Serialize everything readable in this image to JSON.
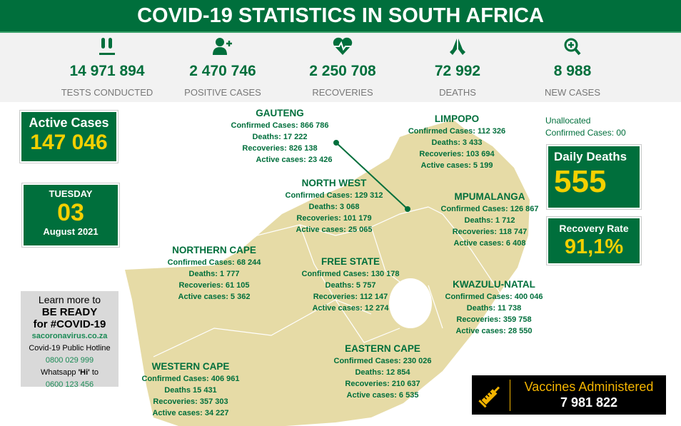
{
  "header": {
    "title": "COVID-19 STATISTICS IN SOUTH AFRICA"
  },
  "stats": [
    {
      "icon": "test-tubes-icon",
      "value": "14 971 894",
      "label": "TESTS CONDUCTED"
    },
    {
      "icon": "add-user-icon",
      "value": "2 470 746",
      "label": "POSITIVE CASES"
    },
    {
      "icon": "heartbeat-icon",
      "value": "2 250 708",
      "label": "RECOVERIES"
    },
    {
      "icon": "praying-hands-icon",
      "value": "72 992",
      "label": "DEATHS"
    },
    {
      "icon": "zoom-plus-icon",
      "value": "8 988",
      "label": "NEW CASES"
    }
  ],
  "active": {
    "label": "Active Cases",
    "value": "147 046"
  },
  "date": {
    "day": "TUESDAY",
    "num": "03",
    "month": "August 2021"
  },
  "unallocated": {
    "line1": "Unallocated",
    "line2": "Confirmed Cases: 00"
  },
  "daily_deaths": {
    "label": "Daily Deaths",
    "value": "555"
  },
  "recovery_rate": {
    "label": "Recovery Rate",
    "value": "91,1%"
  },
  "provinces": [
    {
      "name": "GAUTENG",
      "confirmed": "Confirmed Cases: 866 786",
      "deaths": "Deaths: 17 222",
      "recoveries": "Recoveries: 826 138",
      "active": "Active cases: 23 426"
    },
    {
      "name": "LIMPOPO",
      "confirmed": "Confirmed Cases: 112 326",
      "deaths": "Deaths: 3 433",
      "recoveries": "Recoveries: 103 694",
      "active": "Active cases: 5 199"
    },
    {
      "name": "NORTH WEST",
      "confirmed": "Confirmed Cases: 129  312",
      "deaths": "Deaths: 3 068",
      "recoveries": "Recoveries: 101 179",
      "active": "Active cases: 25 065"
    },
    {
      "name": "MPUMALANGA",
      "confirmed": "Confirmed Cases: 126 867",
      "deaths": "Deaths:  1 712",
      "recoveries": "Recoveries: 118 747",
      "active": "Active cases: 6 408"
    },
    {
      "name": "NORTHERN CAPE",
      "confirmed": "Confirmed Cases: 68 244",
      "deaths": "Deaths: 1 777",
      "recoveries": "Recoveries: 61 105",
      "active": "Active cases: 5 362"
    },
    {
      "name": "FREE STATE",
      "confirmed": "Confirmed Cases: 130 178",
      "deaths": "Deaths: 5 757",
      "recoveries": "Recoveries:  112 147",
      "active": "Active cases: 12 274"
    },
    {
      "name": "KWAZULU-NATAL",
      "confirmed": "Confirmed Cases: 400 046",
      "deaths": "Deaths: 11 738",
      "recoveries": "Recoveries: 359 758",
      "active": "Active cases: 28 550"
    },
    {
      "name": "WESTERN CAPE",
      "confirmed": "Confirmed Cases: 406 961",
      "deaths": "Deaths 15 431",
      "recoveries": "Recoveries: 357 303",
      "active": "Active cases: 34 227"
    },
    {
      "name": "EASTERN CAPE",
      "confirmed": "Confirmed Cases: 230 026",
      "deaths": "Deaths: 12  854",
      "recoveries": "Recoveries: 210 637",
      "active": "Active cases: 6 535"
    }
  ],
  "info": {
    "l1": "Learn more to",
    "l2": "BE READY",
    "l3": "for #COVID-19",
    "site": "sacoronavirus.co.za",
    "l4": "Covid-19 Public Hotline",
    "hotline": "0800 029 999",
    "l5a": "Whatsapp ",
    "l5b": "'Hi'",
    "l5c": " to",
    "whatsapp": "0600 123 456"
  },
  "vaccines": {
    "label": "Vaccines Administered",
    "value": "7 981 822"
  },
  "colors": {
    "green": "#006f3c",
    "yellow": "#f4d000",
    "map": "#e6dba6"
  }
}
